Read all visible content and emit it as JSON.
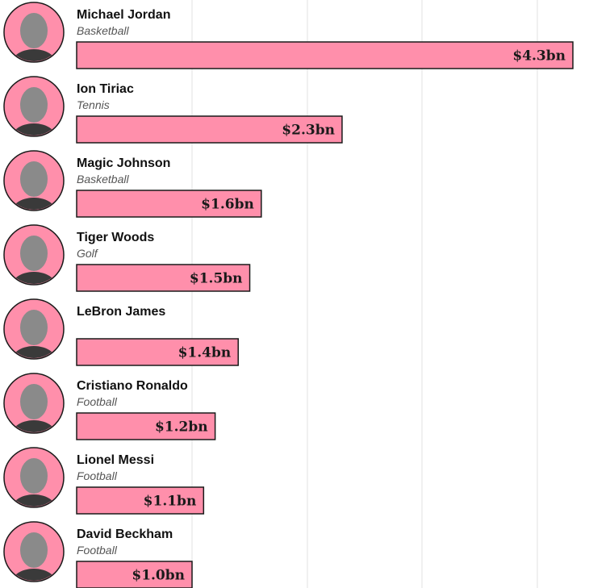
{
  "chart_data": {
    "type": "bar",
    "orientation": "horizontal",
    "unit": "$bn",
    "bar_color": "#ff8fab",
    "grid": true,
    "xlim": [
      0,
      4.3
    ],
    "categories": [
      "Michael Jordan",
      "Ion Tiriac",
      "Magic Johnson",
      "Tiger Woods",
      "LeBron James",
      "Cristiano Ronaldo",
      "Lionel Messi",
      "David Beckham"
    ],
    "sports": [
      "Basketball",
      "Tennis",
      "Basketball",
      "Golf",
      "",
      "Football",
      "Football",
      "Football"
    ],
    "values": [
      4.3,
      2.3,
      1.6,
      1.5,
      1.4,
      1.2,
      1.1,
      1.0
    ],
    "labels": [
      "$4.3bn",
      "$2.3bn",
      "$1.6bn",
      "$1.5bn",
      "$1.4bn",
      "$1.2bn",
      "$1.1bn",
      "$1.0bn"
    ]
  }
}
